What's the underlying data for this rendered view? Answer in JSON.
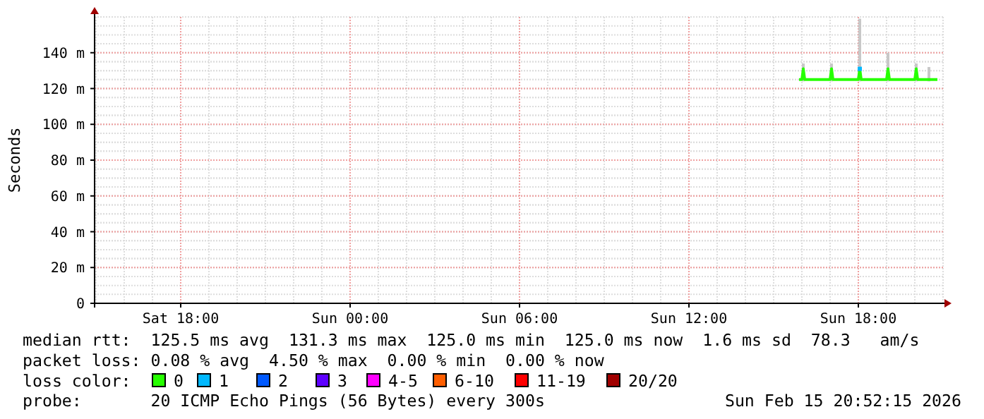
{
  "chart_data": {
    "type": "line",
    "ylabel": "Seconds",
    "legend_title": "loss color:",
    "xlim": [
      "2026-02-14T14:57",
      "2026-02-15T21:03"
    ],
    "xticks": [
      {
        "value": "2026-02-14T18:00",
        "label": "Sat 18:00"
      },
      {
        "value": "2026-02-15T00:00",
        "label": "Sun 00:00"
      },
      {
        "value": "2026-02-15T06:00",
        "label": "Sun 06:00"
      },
      {
        "value": "2026-02-15T12:00",
        "label": "Sun 12:00"
      },
      {
        "value": "2026-02-15T18:00",
        "label": "Sun 18:00"
      }
    ],
    "ylim": [
      0,
      160
    ],
    "yticks": [
      {
        "value": 0,
        "label": "0"
      },
      {
        "value": 20,
        "label": "20 m"
      },
      {
        "value": 40,
        "label": "40 m"
      },
      {
        "value": 60,
        "label": "60 m"
      },
      {
        "value": 80,
        "label": "80 m"
      },
      {
        "value": 100,
        "label": "100 m"
      },
      {
        "value": 120,
        "label": "120 m"
      },
      {
        "value": 140,
        "label": "140 m"
      }
    ],
    "grid": true,
    "legend": "bottom",
    "series": [
      {
        "type": "bar",
        "color": "#c8c8c8",
        "x": [
          "2026-02-15T16:03",
          "2026-02-15T17:03",
          "2026-02-15T18:03",
          "2026-02-15T19:03",
          "2026-02-15T20:03",
          "2026-02-15T20:30"
        ],
        "base": [
          124,
          124,
          124,
          124,
          124,
          124
        ],
        "values": [
          10,
          10,
          35,
          16,
          10,
          8
        ]
      },
      {
        "name": "0",
        "color": "#26ff00",
        "x": [
          "2026-02-15T15:54",
          "2026-02-15T16:00",
          "2026-02-15T16:03",
          "2026-02-15T16:06",
          "2026-02-15T17:00",
          "2026-02-15T17:03",
          "2026-02-15T17:06",
          "2026-02-15T18:00",
          "2026-02-15T18:03",
          "2026-02-15T18:06",
          "2026-02-15T19:00",
          "2026-02-15T19:03",
          "2026-02-15T19:06",
          "2026-02-15T20:00",
          "2026-02-15T20:03",
          "2026-02-15T20:06",
          "2026-02-15T20:48"
        ],
        "values": [
          125,
          125,
          131,
          125,
          125,
          131,
          125,
          125,
          131,
          125,
          125,
          131,
          125,
          125,
          131,
          125,
          125
        ]
      },
      {
        "name": "1",
        "type": "scatter",
        "marker": "square",
        "color": "#00b8ff",
        "x": [
          "2026-02-15T18:03"
        ],
        "values": [
          131
        ]
      },
      {
        "name": "2",
        "type": "scatter",
        "marker": "square",
        "color": "#0059ff"
      },
      {
        "name": "3",
        "type": "scatter",
        "marker": "square",
        "color": "#5e00ff"
      },
      {
        "name": "4-5",
        "type": "scatter",
        "marker": "square",
        "color": "#ff00ff"
      },
      {
        "name": "6-10",
        "type": "scatter",
        "marker": "square",
        "color": "#ff5e00"
      },
      {
        "name": "11-19",
        "type": "scatter",
        "marker": "square",
        "color": "#ff0000"
      },
      {
        "name": "20/20",
        "type": "scatter",
        "marker": "square",
        "color": "#a10000"
      }
    ],
    "annotations": [
      "median rtt:  125.5 ms avg  131.3 ms max  125.0 ms min  125.0 ms now  1.6 ms sd  78.3   am/s",
      "packet loss: 0.08 % avg  4.50 % max  0.00 % min  0.00 % now",
      "probe:       20 ICMP Echo Pings (56 Bytes) every 300s",
      "Sun Feb 15 20:52:15 2026"
    ]
  }
}
